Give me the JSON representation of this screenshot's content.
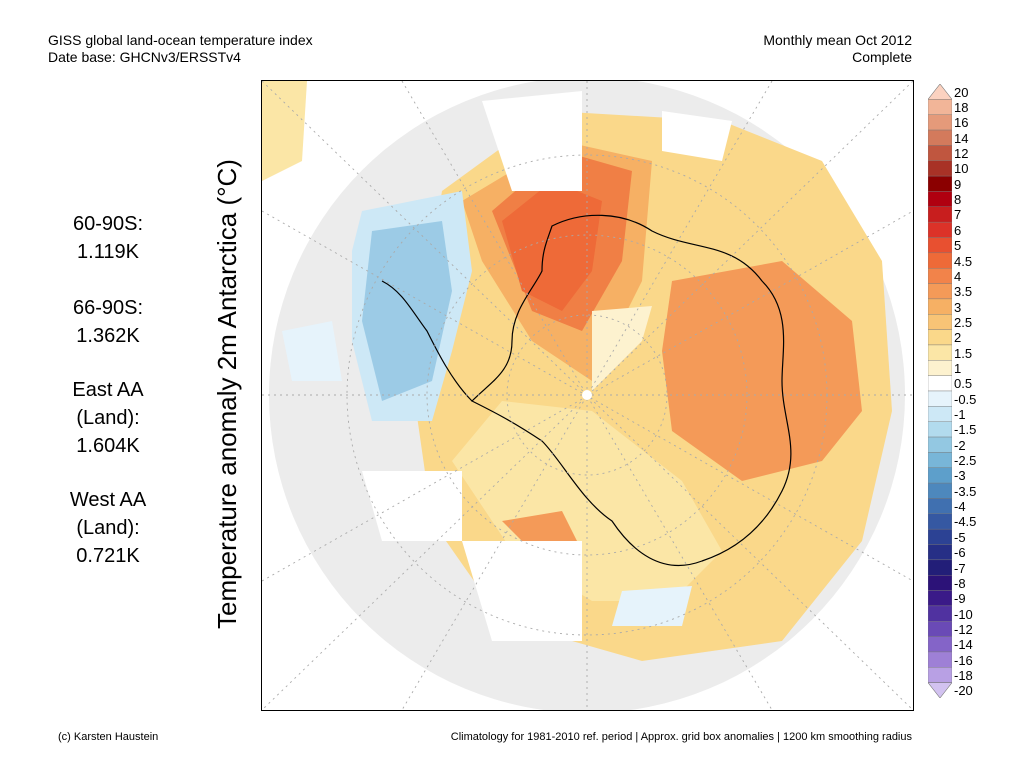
{
  "header": {
    "title": "GISS global land-ocean temperature index",
    "subtitle": "Date base: GHCNv3/ERSSTv4",
    "period": "Monthly mean Oct 2012",
    "status": "Complete"
  },
  "stats": [
    {
      "lines": [
        "60-90S:",
        "1.119K"
      ]
    },
    {
      "lines": [
        "66-90S:",
        "1.362K"
      ]
    },
    {
      "lines": [
        "East AA",
        "(Land):",
        "1.604K"
      ]
    },
    {
      "lines": [
        "West AA",
        "(Land):",
        "0.721K"
      ]
    }
  ],
  "ylabel": "Temperature anomaly 2m Antarctica (°C)",
  "footer": {
    "credit": "(c) Karsten Haustein",
    "note": "Climatology for 1981-2010 ref. period | Approx. grid box anomalies | 1200 km smoothing radius"
  },
  "colorbar": {
    "labels": [
      "20",
      "18",
      "16",
      "14",
      "12",
      "10",
      "9",
      "8",
      "7",
      "6",
      "5",
      "4.5",
      "4",
      "3.5",
      "3",
      "2.5",
      "2",
      "1.5",
      "1",
      "0.5",
      "-0.5",
      "-1",
      "-1.5",
      "-2",
      "-2.5",
      "-3",
      "-3.5",
      "-4",
      "-4.5",
      "-5",
      "-6",
      "-7",
      "-8",
      "-9",
      "-10",
      "-12",
      "-14",
      "-16",
      "-18",
      "-20"
    ],
    "colors": [
      "#fbd2c0",
      "#f2b598",
      "#e59a7a",
      "#d37a5c",
      "#c0563f",
      "#a83226",
      "#8b0000",
      "#b00010",
      "#c81e1e",
      "#dc3228",
      "#e85030",
      "#ee6a38",
      "#f2834a",
      "#f49a58",
      "#f6b064",
      "#f8c476",
      "#fad88a",
      "#fbe6a6",
      "#fdf2cf",
      "#ffffff",
      "#e6f3fb",
      "#cde8f6",
      "#b2dbee",
      "#93c8e2",
      "#78b6d8",
      "#5d9fcb",
      "#4d88bd",
      "#4070b0",
      "#3558a2",
      "#2c4294",
      "#262f86",
      "#221e78",
      "#2c1278",
      "#3a1a88",
      "#5032a0",
      "#6a4ab6",
      "#8464c8",
      "#9e80d6",
      "#b8a0e4",
      "#d2c2f0"
    ]
  },
  "map_regions": [
    {
      "name": "peninsula-warm-anomaly",
      "color": "#f07f45"
    },
    {
      "name": "east-antarctica-warm-anomaly",
      "color": "#f6b064"
    },
    {
      "name": "bellingshausen-cool-anomaly",
      "color": "#9ccbe6"
    }
  ]
}
